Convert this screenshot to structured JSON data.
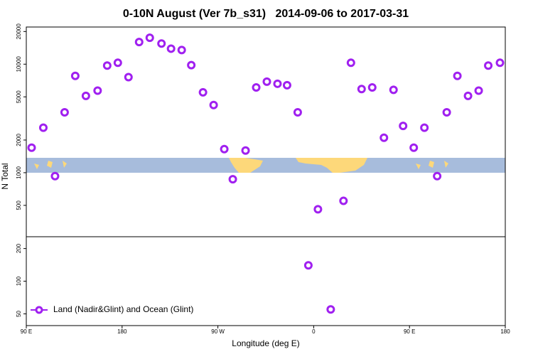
{
  "chart_data": {
    "type": "scatter",
    "title": "0-10N August (Ver 7b_s31)   2014-09-06 to 2017-03-31",
    "x_label": "Longitude (deg E)",
    "y_label": "N Total",
    "log_y": true,
    "legend": "bottom-left",
    "xlim": [
      90,
      540
    ],
    "xticks": [
      {
        "value": 90,
        "label": "90 E"
      },
      180,
      {
        "value": 270,
        "label": "90 W"
      },
      {
        "value": 360,
        "label": "0"
      },
      {
        "value": 450,
        "label": "90 E"
      },
      {
        "value": 540,
        "label": "180"
      }
    ],
    "ylim": [
      39,
      22000
    ],
    "yticks": [
      20000,
      10000,
      5000,
      2000,
      1000,
      500,
      200,
      100,
      50
    ],
    "series": [
      {
        "name": "Land (Nadir&Glint) and Ocean (Glint)",
        "color": "#a020f0",
        "x": [
          95,
          106,
          117,
          126,
          136,
          146,
          157,
          166,
          176,
          186,
          196,
          206,
          217,
          226,
          236,
          245,
          256,
          266,
          276,
          284,
          296,
          306,
          316,
          326,
          335,
          345,
          355,
          364,
          376,
          388,
          395,
          405,
          415,
          426,
          435,
          444,
          454,
          464,
          476,
          485,
          495,
          505,
          515,
          524,
          535
        ],
        "values": [
          1700,
          2600,
          930,
          3600,
          7800,
          5100,
          5700,
          9700,
          10300,
          7600,
          16000,
          17500,
          15500,
          13900,
          13500,
          9800,
          5500,
          4200,
          1650,
          870,
          1600,
          6100,
          6900,
          6600,
          6400,
          3600,
          140,
          460,
          55,
          550,
          10300,
          5900,
          6100,
          2100,
          5800,
          2700,
          1700,
          2600,
          930,
          3600,
          7800,
          5100,
          5700,
          9700,
          10300
        ]
      }
    ]
  }
}
